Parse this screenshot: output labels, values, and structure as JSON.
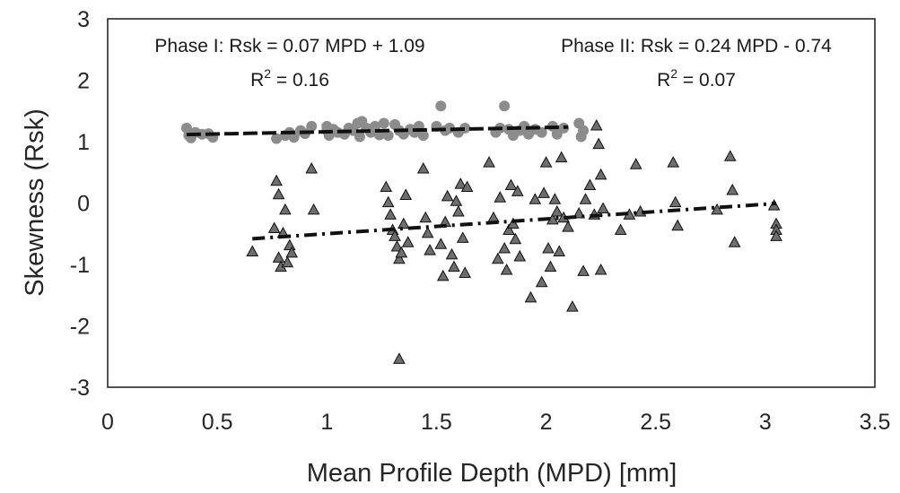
{
  "chart_data": {
    "type": "scatter",
    "title": "",
    "xlabel": "Mean Profile Depth (MPD) [mm]",
    "ylabel": "Skewness (Rsk)",
    "xlim": [
      0,
      3.5
    ],
    "ylim": [
      -3,
      3
    ],
    "x_ticks": [
      "0",
      "0.5",
      "1",
      "1.5",
      "2",
      "2.5",
      "3",
      "3.5"
    ],
    "y_ticks": [
      "3",
      "2",
      "1",
      "0",
      "-1",
      "-2",
      "-3"
    ],
    "grid": false,
    "legend": "none",
    "annotations": [
      {
        "id": "phase1-eq",
        "text": "Phase I: Rsk = 0.07 MPD + 1.09"
      },
      {
        "id": "phase1-r2",
        "prefix": "R",
        "sup": "2",
        "suffix": " = 0.16"
      },
      {
        "id": "phase2-eq",
        "text": "Phase II: Rsk = 0.24 MPD - 0.74"
      },
      {
        "id": "phase2-r2",
        "prefix": "R",
        "sup": "2",
        "suffix": " = 0.07"
      }
    ],
    "series": [
      {
        "marker": "circle",
        "color": "#8c8c8c",
        "trendline": {
          "slope": 0.07,
          "intercept": 1.09,
          "x_range": [
            0.36,
            2.1
          ],
          "style": "dashed"
        },
        "points": [
          [
            0.36,
            1.22
          ],
          [
            0.37,
            1.1
          ],
          [
            0.38,
            1.06
          ],
          [
            0.4,
            1.15
          ],
          [
            0.43,
            1.12
          ],
          [
            0.46,
            1.13
          ],
          [
            0.48,
            1.07
          ],
          [
            0.77,
            1.05
          ],
          [
            0.81,
            1.1
          ],
          [
            0.83,
            1.15
          ],
          [
            0.85,
            1.07
          ],
          [
            0.88,
            1.18
          ],
          [
            0.9,
            1.13
          ],
          [
            0.93,
            1.25
          ],
          [
            1.0,
            1.25
          ],
          [
            1.0,
            1.18
          ],
          [
            1.01,
            1.1
          ],
          [
            1.03,
            1.2
          ],
          [
            1.05,
            1.15
          ],
          [
            1.08,
            1.12
          ],
          [
            1.1,
            1.22
          ],
          [
            1.12,
            1.18
          ],
          [
            1.14,
            1.3
          ],
          [
            1.15,
            1.08
          ],
          [
            1.16,
            1.33
          ],
          [
            1.18,
            1.22
          ],
          [
            1.2,
            1.15
          ],
          [
            1.22,
            1.25
          ],
          [
            1.24,
            1.11
          ],
          [
            1.26,
            1.3
          ],
          [
            1.28,
            1.1
          ],
          [
            1.31,
            1.28
          ],
          [
            1.33,
            1.18
          ],
          [
            1.35,
            1.12
          ],
          [
            1.38,
            1.2
          ],
          [
            1.4,
            1.15
          ],
          [
            1.42,
            1.25
          ],
          [
            1.44,
            1.1
          ],
          [
            1.5,
            1.25
          ],
          [
            1.52,
            1.58
          ],
          [
            1.54,
            1.18
          ],
          [
            1.56,
            1.22
          ],
          [
            1.6,
            1.15
          ],
          [
            1.63,
            1.22
          ],
          [
            1.77,
            1.15
          ],
          [
            1.79,
            1.22
          ],
          [
            1.81,
            1.58
          ],
          [
            1.83,
            1.2
          ],
          [
            1.85,
            1.1
          ],
          [
            1.88,
            1.18
          ],
          [
            1.9,
            1.25
          ],
          [
            1.92,
            1.12
          ],
          [
            1.95,
            1.2
          ],
          [
            1.98,
            1.15
          ],
          [
            2.03,
            1.25
          ],
          [
            2.05,
            1.12
          ],
          [
            2.08,
            1.22
          ],
          [
            2.15,
            1.3
          ],
          [
            2.16,
            1.08
          ],
          [
            2.17,
            1.18
          ]
        ]
      },
      {
        "marker": "triangle",
        "color": "#6e6e6e",
        "trendline": {
          "slope": 0.24,
          "intercept": -0.74,
          "x_range": [
            0.66,
            3.05
          ],
          "style": "dash-dot"
        },
        "points": [
          [
            0.66,
            -0.8
          ],
          [
            0.76,
            -0.42
          ],
          [
            0.77,
            0.35
          ],
          [
            0.78,
            0.13
          ],
          [
            0.78,
            -0.9
          ],
          [
            0.79,
            -1.05
          ],
          [
            0.8,
            -0.5
          ],
          [
            0.81,
            -0.12
          ],
          [
            0.82,
            -0.98
          ],
          [
            0.83,
            -0.7
          ],
          [
            0.84,
            -0.82
          ],
          [
            0.93,
            0.55
          ],
          [
            0.94,
            -0.12
          ],
          [
            1.27,
            0.25
          ],
          [
            1.28,
            0.0
          ],
          [
            1.29,
            -0.2
          ],
          [
            1.3,
            -0.45
          ],
          [
            1.31,
            -0.55
          ],
          [
            1.32,
            -0.72
          ],
          [
            1.33,
            -0.92
          ],
          [
            1.34,
            -0.82
          ],
          [
            1.35,
            -0.35
          ],
          [
            1.36,
            0.12
          ],
          [
            1.37,
            -0.65
          ],
          [
            1.33,
            -2.55
          ],
          [
            1.44,
            0.55
          ],
          [
            1.45,
            -0.25
          ],
          [
            1.46,
            -0.5
          ],
          [
            1.47,
            -0.78
          ],
          [
            1.52,
            -0.68
          ],
          [
            1.53,
            -1.2
          ],
          [
            1.54,
            -0.32
          ],
          [
            1.55,
            0.1
          ],
          [
            1.57,
            -0.85
          ],
          [
            1.58,
            -1.05
          ],
          [
            1.59,
            0.02
          ],
          [
            1.6,
            -0.15
          ],
          [
            1.61,
            0.3
          ],
          [
            1.62,
            -0.58
          ],
          [
            1.63,
            -1.15
          ],
          [
            1.64,
            0.25
          ],
          [
            1.74,
            0.65
          ],
          [
            1.76,
            -0.25
          ],
          [
            1.78,
            -0.92
          ],
          [
            1.79,
            0.08
          ],
          [
            1.81,
            -0.75
          ],
          [
            1.82,
            -1.1
          ],
          [
            1.83,
            -0.45
          ],
          [
            1.84,
            0.28
          ],
          [
            1.85,
            -0.35
          ],
          [
            1.86,
            -0.6
          ],
          [
            1.87,
            0.18
          ],
          [
            1.88,
            -0.88
          ],
          [
            1.93,
            -1.55
          ],
          [
            1.95,
            0.05
          ],
          [
            1.98,
            -1.3
          ],
          [
            1.99,
            0.15
          ],
          [
            2.0,
            0.65
          ],
          [
            2.01,
            -0.75
          ],
          [
            2.02,
            -1.05
          ],
          [
            2.03,
            -0.28
          ],
          [
            2.04,
            0.05
          ],
          [
            2.05,
            -0.15
          ],
          [
            2.06,
            -0.8
          ],
          [
            2.07,
            0.73
          ],
          [
            2.08,
            -0.25
          ],
          [
            2.1,
            -0.4
          ],
          [
            2.12,
            -1.7
          ],
          [
            2.15,
            -0.18
          ],
          [
            2.17,
            -1.12
          ],
          [
            2.18,
            0.05
          ],
          [
            2.2,
            0.28
          ],
          [
            2.22,
            -0.2
          ],
          [
            2.23,
            1.25
          ],
          [
            2.24,
            0.95
          ],
          [
            2.25,
            -1.1
          ],
          [
            2.25,
            0.45
          ],
          [
            2.26,
            -0.1
          ],
          [
            2.34,
            -0.45
          ],
          [
            2.38,
            -0.2
          ],
          [
            2.41,
            0.62
          ],
          [
            2.43,
            -0.15
          ],
          [
            2.58,
            0.65
          ],
          [
            2.59,
            0.0
          ],
          [
            2.6,
            -0.38
          ],
          [
            2.78,
            -0.12
          ],
          [
            2.84,
            0.75
          ],
          [
            2.85,
            0.2
          ],
          [
            2.86,
            -0.65
          ],
          [
            3.04,
            -0.05
          ],
          [
            3.05,
            -0.35
          ],
          [
            3.05,
            -0.45
          ],
          [
            3.05,
            -0.55
          ]
        ]
      }
    ]
  }
}
